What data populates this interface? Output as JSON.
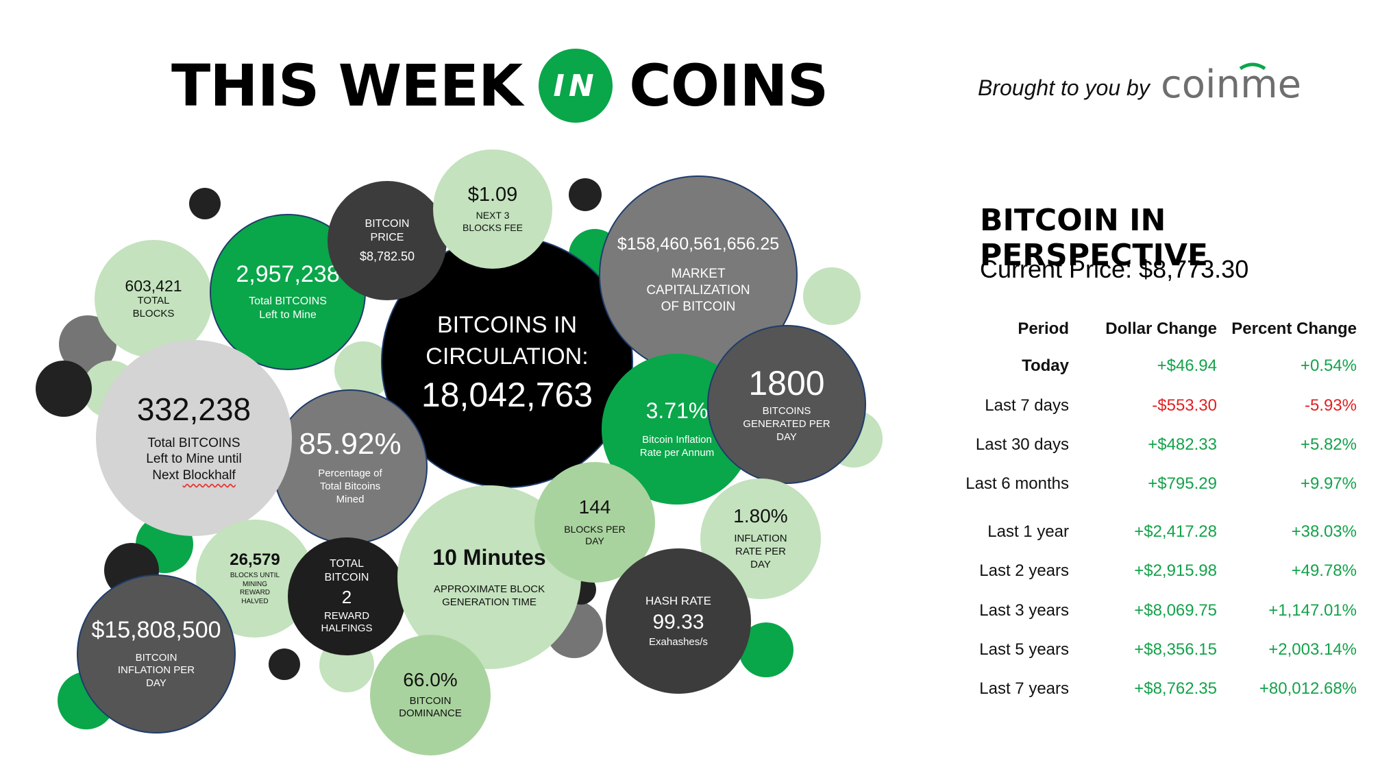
{
  "header": {
    "title_left": "THIS WEEK",
    "title_badge": "IN",
    "title_right": "COINS",
    "brought_by": "Brought to you by",
    "brand": "coinme",
    "brand_color": "#0aa64a"
  },
  "bubbles": {
    "total_blocks": {
      "value": "603,421",
      "label1": "TOTAL",
      "label2": "BLOCKS"
    },
    "left_to_mine": {
      "value": "2,957,238",
      "label1": "Total BITCOINS",
      "label2": "Left to Mine"
    },
    "btc_price": {
      "label1": "BITCOIN",
      "label2": "PRICE",
      "value": "$8,782.50"
    },
    "next3_fee": {
      "value": "$1.09",
      "label1": "NEXT 3",
      "label2": "BLOCKS FEE"
    },
    "market_cap": {
      "value": "$158,460,561,656.25",
      "label1": "MARKET",
      "label2": "CAPITALIZATION",
      "label3": "OF BITCOIN"
    },
    "circulation": {
      "label1": "BITCOINS IN",
      "label2": "CIRCULATION:",
      "value": "18,042,763"
    },
    "left_until_half": {
      "value": "332,238",
      "label1": "Total BITCOINS",
      "label2": "Left to Mine until",
      "label3a": "Next ",
      "label3b": "Blockhalf"
    },
    "pct_mined": {
      "value": "85.92%",
      "label1": "Percentage of",
      "label2": "Total Bitcoins",
      "label3": "Mined"
    },
    "inflation_rate": {
      "value": "3.71%",
      "label1": "Bitcoin Inflation",
      "label2": "Rate per Annum"
    },
    "generated_per_day": {
      "value": "1800",
      "label1": "BITCOINS",
      "label2": "GENERATED PER",
      "label3": "DAY"
    },
    "blocks_per_day": {
      "value": "144",
      "label1": "BLOCKS PER",
      "label2": "DAY"
    },
    "inflation_per_day_pct": {
      "value": "1.80%",
      "label1": "INFLATION",
      "label2": "RATE PER",
      "label3": "DAY"
    },
    "blocks_until_halved": {
      "value": "26,579",
      "label1": "BLOCKS UNTIL",
      "label2": "MINING",
      "label3": "REWARD",
      "label4": "HALVED"
    },
    "halvings": {
      "label1": "TOTAL",
      "label2": "BITCOIN",
      "value": "2",
      "label3": "REWARD",
      "label4": "HALFINGS"
    },
    "block_time": {
      "value": "10 Minutes",
      "label1": "APPROXIMATE BLOCK",
      "label2": "GENERATION TIME"
    },
    "hash_rate": {
      "label1": "HASH RATE",
      "value": "99.33",
      "label2": "Exahashes/s"
    },
    "inflation_usd": {
      "value": "$15,808,500",
      "label1": "BITCOIN",
      "label2": "INFLATION PER",
      "label3": "DAY"
    },
    "dominance": {
      "value": "66.0%",
      "label1": "BITCOIN",
      "label2": "DOMINANCE"
    }
  },
  "perspective": {
    "title": "BITCOIN IN PERSPECTIVE",
    "current_price": "Current Price: $8,773.30",
    "headers": [
      "Period",
      "Dollar Change",
      "Percent Change"
    ],
    "rows": [
      {
        "period": "Today",
        "dollar": "+$46.94",
        "percent": "+0.54%",
        "trend": "up"
      },
      {
        "period": "Last 7 days",
        "dollar": "-$553.30",
        "percent": "-5.93%",
        "trend": "down"
      },
      {
        "period": "Last 30 days",
        "dollar": "+$482.33",
        "percent": "+5.82%",
        "trend": "up"
      },
      {
        "period": "Last 6 months",
        "dollar": "+$795.29",
        "percent": "+9.97%",
        "trend": "up"
      },
      {
        "period": "Last 1 year",
        "dollar": "+$2,417.28",
        "percent": "+38.03%",
        "trend": "up"
      },
      {
        "period": "Last 2 years",
        "dollar": "+$2,915.98",
        "percent": "+49.78%",
        "trend": "up"
      },
      {
        "period": "Last 3 years",
        "dollar": "+$8,069.75",
        "percent": "+1,147.01%",
        "trend": "up"
      },
      {
        "period": "Last 5 years",
        "dollar": "+$8,356.15",
        "percent": "+2,003.14%",
        "trend": "up"
      },
      {
        "period": "Last 7 years",
        "dollar": "+$8,762.35",
        "percent": "+80,012.68%",
        "trend": "up"
      }
    ],
    "up_color": "#13a24a",
    "down_color": "#e02020"
  }
}
